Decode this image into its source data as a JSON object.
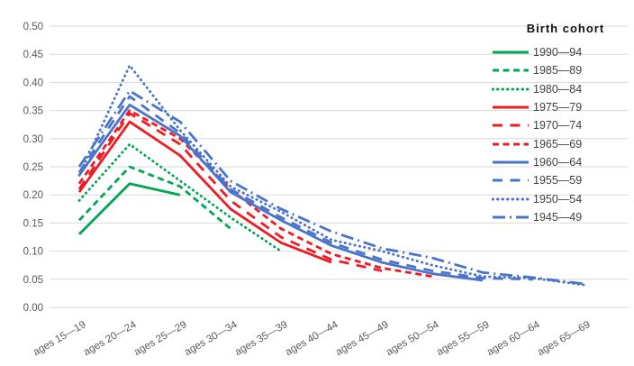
{
  "chart_data": {
    "type": "line",
    "title": "",
    "legend_title": "Birth cohort",
    "legend_position": "top-right",
    "grid": true,
    "ylim": [
      0,
      0.5
    ],
    "ytick_step": 0.05,
    "ytick_format_decimals": 2,
    "xlabel": "",
    "ylabel": "",
    "categories": [
      "ages 15—19",
      "ages 20—24",
      "ages 25—29",
      "ages 30—34",
      "ages 35—39",
      "ages 40—44",
      "ages 45—49",
      "ages 50—54",
      "ages 55—59",
      "ages 60—64",
      "ages 65—69"
    ],
    "series": [
      {
        "name": "1990—94",
        "color": "#00a650",
        "style": "solid",
        "values": [
          0.13,
          0.22,
          0.2
        ]
      },
      {
        "name": "1985—89",
        "color": "#00a650",
        "style": "dash",
        "values": [
          0.155,
          0.25,
          0.215,
          0.14
        ]
      },
      {
        "name": "1980—84",
        "color": "#00a650",
        "style": "dot",
        "values": [
          0.19,
          0.29,
          0.225,
          0.16,
          0.1
        ]
      },
      {
        "name": "1975—79",
        "color": "#ed1c24",
        "style": "solid",
        "values": [
          0.205,
          0.33,
          0.27,
          0.175,
          0.115,
          0.08
        ]
      },
      {
        "name": "1970—74",
        "color": "#ed1c24",
        "style": "long-dash",
        "values": [
          0.21,
          0.345,
          0.29,
          0.19,
          0.125,
          0.085,
          0.065
        ]
      },
      {
        "name": "1965—69",
        "color": "#ed1c24",
        "style": "dash",
        "values": [
          0.22,
          0.35,
          0.3,
          0.21,
          0.14,
          0.095,
          0.07,
          0.055
        ]
      },
      {
        "name": "1960—64",
        "color": "#4a74c9",
        "style": "solid",
        "values": [
          0.235,
          0.36,
          0.305,
          0.205,
          0.155,
          0.11,
          0.08,
          0.06,
          0.048
        ]
      },
      {
        "name": "1955—59",
        "color": "#4a74c9",
        "style": "long-dash",
        "values": [
          0.24,
          0.375,
          0.31,
          0.21,
          0.16,
          0.115,
          0.085,
          0.065,
          0.052,
          0.05
        ]
      },
      {
        "name": "1950—54",
        "color": "#4a74c9",
        "style": "dot",
        "values": [
          0.235,
          0.43,
          0.315,
          0.215,
          0.17,
          0.12,
          0.1,
          0.075,
          0.055,
          0.052,
          0.04
        ]
      },
      {
        "name": "1945—49",
        "color": "#4a74c9",
        "style": "dash-dot",
        "values": [
          0.25,
          0.385,
          0.33,
          0.225,
          0.175,
          0.135,
          0.105,
          0.088,
          0.062,
          0.053,
          0.042
        ]
      }
    ],
    "colors": {
      "gridline": "#d9d9d9",
      "axis_text": "#595959",
      "legend_text": "#404040"
    }
  }
}
